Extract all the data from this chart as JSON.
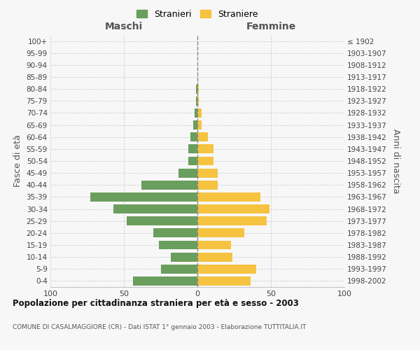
{
  "age_groups": [
    "100+",
    "95-99",
    "90-94",
    "85-89",
    "80-84",
    "75-79",
    "70-74",
    "65-69",
    "60-64",
    "55-59",
    "50-54",
    "45-49",
    "40-44",
    "35-39",
    "30-34",
    "25-29",
    "20-24",
    "15-19",
    "10-14",
    "5-9",
    "0-4"
  ],
  "birth_years": [
    "≤ 1902",
    "1903-1907",
    "1908-1912",
    "1913-1917",
    "1918-1922",
    "1923-1927",
    "1928-1932",
    "1933-1937",
    "1938-1942",
    "1943-1947",
    "1948-1952",
    "1953-1957",
    "1958-1962",
    "1963-1967",
    "1968-1972",
    "1973-1977",
    "1978-1982",
    "1983-1987",
    "1988-1992",
    "1993-1997",
    "1998-2002"
  ],
  "maschi": [
    0,
    0,
    0,
    0,
    1,
    1,
    2,
    3,
    5,
    6,
    6,
    13,
    38,
    73,
    57,
    48,
    30,
    26,
    18,
    25,
    44
  ],
  "femmine": [
    0,
    0,
    0,
    0,
    1,
    1,
    3,
    3,
    7,
    11,
    11,
    14,
    14,
    43,
    49,
    47,
    32,
    23,
    24,
    40,
    36
  ],
  "maschi_color": "#6a9e5c",
  "femmine_color": "#f5c340",
  "background_color": "#f7f7f7",
  "grid_color": "#cccccc",
  "title": "Popolazione per cittadinanza straniera per età e sesso - 2003",
  "subtitle": "COMUNE DI CASALMAGGIORE (CR) - Dati ISTAT 1° gennaio 2003 - Elaborazione TUTTITALIA.IT",
  "xlabel_left": "Maschi",
  "xlabel_right": "Femmine",
  "ylabel_left": "Fasce di età",
  "ylabel_right": "Anni di nascita",
  "xlim": 100,
  "legend_stranieri": "Stranieri",
  "legend_straniere": "Straniere"
}
